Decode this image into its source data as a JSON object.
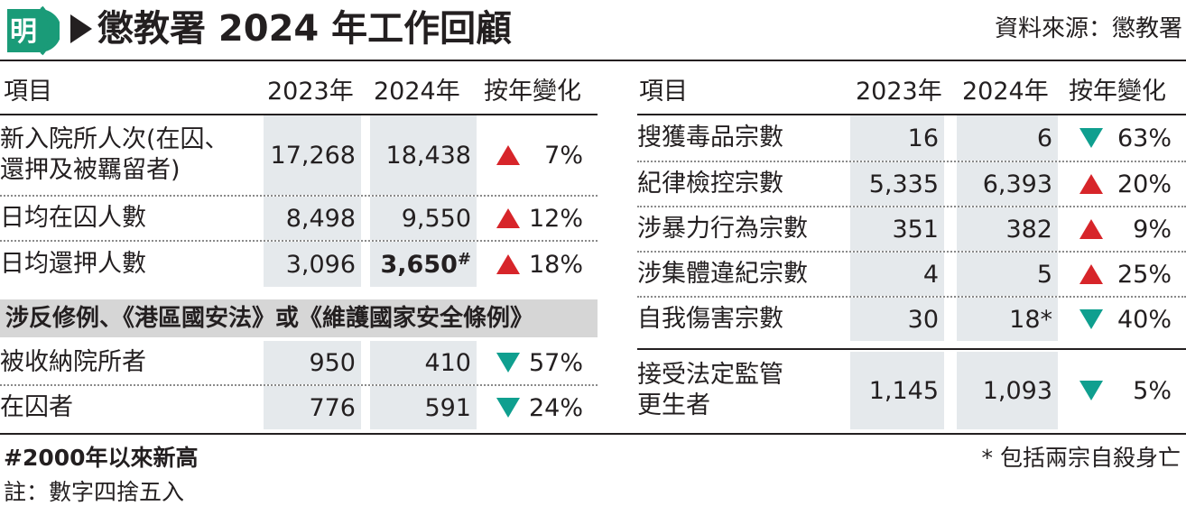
{
  "logo": {
    "glyph": "明",
    "color": "#1a9b78"
  },
  "title": "懲教署 2024 年工作回顧",
  "source": "資料來源：懲教署",
  "colors": {
    "up": "#d7252a",
    "down": "#0f9f8f",
    "shade": "#e5e9ec",
    "section_bg": "#d6d6d6"
  },
  "left_table": {
    "headers": [
      "項目",
      "2023年",
      "2024年",
      "按年變化"
    ],
    "rows": [
      {
        "label": "新入院所人次(在囚、\n還押及被羈留者)",
        "v2023": "17,268",
        "v2024": "18,438",
        "dir": "up",
        "change": "7%"
      },
      {
        "label": "日均在囚人數",
        "v2023": "8,498",
        "v2024": "9,550",
        "dir": "up",
        "change": "12%"
      },
      {
        "label": "日均還押人數",
        "v2023": "3,096",
        "v2024": "3,650",
        "v2024_mark": "#",
        "dir": "up",
        "change": "18%"
      }
    ],
    "section_title": "涉反修例、《港區國安法》或《維護國家安全條例》",
    "section_rows": [
      {
        "label": "被收納院所者",
        "v2023": "950",
        "v2024": "410",
        "dir": "down",
        "change": "57%"
      },
      {
        "label": "在囚者",
        "v2023": "776",
        "v2024": "591",
        "dir": "down",
        "change": "24%"
      }
    ]
  },
  "right_table": {
    "headers": [
      "項目",
      "2023年",
      "2024年",
      "按年變化"
    ],
    "rows": [
      {
        "label": "搜獲毒品宗數",
        "v2023": "16",
        "v2024": "6",
        "dir": "down",
        "change": "63%"
      },
      {
        "label": "紀律檢控宗數",
        "v2023": "5,335",
        "v2024": "6,393",
        "dir": "up",
        "change": "20%"
      },
      {
        "label": "涉暴力行為宗數",
        "v2023": "351",
        "v2024": "382",
        "dir": "up",
        "change": "9%"
      },
      {
        "label": "涉集體違紀宗數",
        "v2023": "4",
        "v2024": "5",
        "dir": "up",
        "change": "25%"
      },
      {
        "label": "自我傷害宗數",
        "v2023": "30",
        "v2024": "18*",
        "dir": "down",
        "change": "40%"
      },
      {
        "label": "接受法定監管\n更生者",
        "v2023": "1,145",
        "v2024": "1,093",
        "dir": "down",
        "change": "5%"
      }
    ]
  },
  "footnotes": {
    "hash_note": "#2000年以來新高",
    "rounding_note": "註：數字四捨五入",
    "star_note": "* 包括兩宗自殺身亡"
  }
}
